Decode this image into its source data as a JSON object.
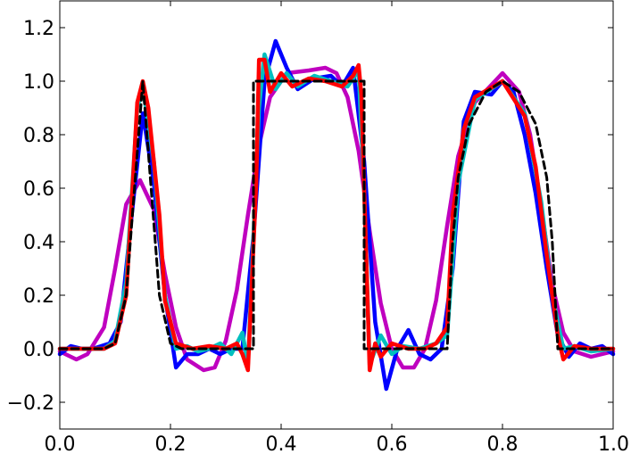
{
  "chart_data": {
    "type": "line",
    "title": "",
    "xlabel": "",
    "ylabel": "",
    "xlim": [
      0.0,
      1.0
    ],
    "ylim": [
      -0.3,
      1.3
    ],
    "grid": false,
    "legend": "none",
    "x_ticks": [
      {
        "value": 0.0,
        "label": "0.0"
      },
      {
        "value": 0.2,
        "label": "0.2"
      },
      {
        "value": 0.4,
        "label": "0.4"
      },
      {
        "value": 0.6,
        "label": "0.6"
      },
      {
        "value": 0.8,
        "label": "0.8"
      },
      {
        "value": 1.0,
        "label": "1.0"
      }
    ],
    "y_ticks": [
      {
        "value": -0.2,
        "label": "−0.2"
      },
      {
        "value": 0.0,
        "label": "0.0"
      },
      {
        "value": 0.2,
        "label": "0.2"
      },
      {
        "value": 0.4,
        "label": "0.4"
      },
      {
        "value": 0.6,
        "label": "0.6"
      },
      {
        "value": 0.8,
        "label": "0.8"
      },
      {
        "value": 1.0,
        "label": "1.0"
      },
      {
        "value": 1.2,
        "label": "1.2"
      }
    ],
    "series": [
      {
        "color": "#bf00bf",
        "style": "solid",
        "points": [
          [
            0.0,
            -0.01
          ],
          [
            0.03,
            -0.04
          ],
          [
            0.05,
            -0.02
          ],
          [
            0.08,
            0.08
          ],
          [
            0.1,
            0.3
          ],
          [
            0.12,
            0.54
          ],
          [
            0.145,
            0.63
          ],
          [
            0.17,
            0.52
          ],
          [
            0.19,
            0.28
          ],
          [
            0.21,
            0.08
          ],
          [
            0.23,
            -0.04
          ],
          [
            0.26,
            -0.08
          ],
          [
            0.28,
            -0.07
          ],
          [
            0.3,
            0.03
          ],
          [
            0.32,
            0.22
          ],
          [
            0.34,
            0.5
          ],
          [
            0.36,
            0.76
          ],
          [
            0.38,
            0.94
          ],
          [
            0.41,
            1.03
          ],
          [
            0.45,
            1.04
          ],
          [
            0.48,
            1.05
          ],
          [
            0.5,
            1.03
          ],
          [
            0.52,
            0.94
          ],
          [
            0.54,
            0.74
          ],
          [
            0.56,
            0.44
          ],
          [
            0.58,
            0.17
          ],
          [
            0.6,
            0.0
          ],
          [
            0.62,
            -0.07
          ],
          [
            0.64,
            -0.07
          ],
          [
            0.66,
            0.0
          ],
          [
            0.68,
            0.18
          ],
          [
            0.7,
            0.46
          ],
          [
            0.72,
            0.72
          ],
          [
            0.75,
            0.92
          ],
          [
            0.8,
            1.03
          ],
          [
            0.83,
            0.96
          ],
          [
            0.85,
            0.8
          ],
          [
            0.87,
            0.53
          ],
          [
            0.89,
            0.24
          ],
          [
            0.91,
            0.06
          ],
          [
            0.93,
            -0.01
          ],
          [
            0.96,
            -0.03
          ],
          [
            0.98,
            -0.02
          ],
          [
            1.0,
            -0.01
          ]
        ]
      },
      {
        "color": "#0000ff",
        "style": "solid",
        "points": [
          [
            0.0,
            -0.02
          ],
          [
            0.02,
            0.01
          ],
          [
            0.04,
            0.0
          ],
          [
            0.06,
            0.0
          ],
          [
            0.09,
            0.02
          ],
          [
            0.11,
            0.1
          ],
          [
            0.13,
            0.5
          ],
          [
            0.15,
            0.88
          ],
          [
            0.17,
            0.62
          ],
          [
            0.19,
            0.2
          ],
          [
            0.21,
            -0.07
          ],
          [
            0.23,
            -0.02
          ],
          [
            0.25,
            -0.02
          ],
          [
            0.27,
            0.0
          ],
          [
            0.29,
            -0.02
          ],
          [
            0.31,
            0.0
          ],
          [
            0.33,
            0.0
          ],
          [
            0.35,
            0.42
          ],
          [
            0.37,
            1.0
          ],
          [
            0.39,
            1.15
          ],
          [
            0.41,
            1.05
          ],
          [
            0.43,
            0.97
          ],
          [
            0.46,
            1.01
          ],
          [
            0.49,
            1.02
          ],
          [
            0.51,
            0.98
          ],
          [
            0.53,
            1.05
          ],
          [
            0.55,
            0.7
          ],
          [
            0.57,
            0.1
          ],
          [
            0.59,
            -0.15
          ],
          [
            0.61,
            0.0
          ],
          [
            0.63,
            0.07
          ],
          [
            0.65,
            -0.02
          ],
          [
            0.67,
            -0.04
          ],
          [
            0.69,
            0.0
          ],
          [
            0.71,
            0.3
          ],
          [
            0.73,
            0.85
          ],
          [
            0.75,
            0.96
          ],
          [
            0.78,
            0.95
          ],
          [
            0.8,
            1.0
          ],
          [
            0.82,
            0.96
          ],
          [
            0.84,
            0.8
          ],
          [
            0.86,
            0.58
          ],
          [
            0.88,
            0.3
          ],
          [
            0.9,
            0.05
          ],
          [
            0.92,
            -0.03
          ],
          [
            0.94,
            0.02
          ],
          [
            0.96,
            0.0
          ],
          [
            0.98,
            0.01
          ],
          [
            1.0,
            -0.02
          ]
        ]
      },
      {
        "color": "#00bfbf",
        "style": "solid",
        "points": [
          [
            0.0,
            0.0
          ],
          [
            0.04,
            0.0
          ],
          [
            0.08,
            0.0
          ],
          [
            0.1,
            0.03
          ],
          [
            0.12,
            0.25
          ],
          [
            0.14,
            0.9
          ],
          [
            0.15,
            0.98
          ],
          [
            0.17,
            0.7
          ],
          [
            0.19,
            0.2
          ],
          [
            0.21,
            0.0
          ],
          [
            0.23,
            0.01
          ],
          [
            0.25,
            -0.01
          ],
          [
            0.27,
            0.0
          ],
          [
            0.29,
            0.02
          ],
          [
            0.31,
            -0.02
          ],
          [
            0.33,
            0.06
          ],
          [
            0.34,
            -0.06
          ],
          [
            0.36,
            0.9
          ],
          [
            0.37,
            1.1
          ],
          [
            0.39,
            0.97
          ],
          [
            0.41,
            1.03
          ],
          [
            0.43,
            0.98
          ],
          [
            0.46,
            1.02
          ],
          [
            0.49,
            1.0
          ],
          [
            0.52,
            0.98
          ],
          [
            0.54,
            1.04
          ],
          [
            0.55,
            0.6
          ],
          [
            0.56,
            -0.06
          ],
          [
            0.58,
            0.05
          ],
          [
            0.6,
            -0.02
          ],
          [
            0.62,
            0.01
          ],
          [
            0.65,
            0.0
          ],
          [
            0.68,
            0.02
          ],
          [
            0.7,
            0.05
          ],
          [
            0.72,
            0.62
          ],
          [
            0.75,
            0.93
          ],
          [
            0.8,
            1.0
          ],
          [
            0.84,
            0.88
          ],
          [
            0.87,
            0.55
          ],
          [
            0.89,
            0.2
          ],
          [
            0.91,
            0.0
          ],
          [
            0.93,
            0.01
          ],
          [
            0.96,
            -0.01
          ],
          [
            1.0,
            0.0
          ]
        ]
      },
      {
        "color": "#ff0000",
        "style": "solid",
        "points": [
          [
            0.0,
            0.0
          ],
          [
            0.04,
            0.0
          ],
          [
            0.08,
            0.0
          ],
          [
            0.1,
            0.02
          ],
          [
            0.12,
            0.2
          ],
          [
            0.13,
            0.55
          ],
          [
            0.14,
            0.92
          ],
          [
            0.15,
            1.0
          ],
          [
            0.16,
            0.9
          ],
          [
            0.18,
            0.5
          ],
          [
            0.19,
            0.18
          ],
          [
            0.21,
            0.02
          ],
          [
            0.24,
            0.0
          ],
          [
            0.27,
            0.01
          ],
          [
            0.3,
            0.0
          ],
          [
            0.32,
            0.02
          ],
          [
            0.33,
            -0.02
          ],
          [
            0.34,
            -0.08
          ],
          [
            0.355,
            0.62
          ],
          [
            0.36,
            1.08
          ],
          [
            0.37,
            1.08
          ],
          [
            0.38,
            0.96
          ],
          [
            0.4,
            1.03
          ],
          [
            0.42,
            0.98
          ],
          [
            0.45,
            1.01
          ],
          [
            0.48,
            1.0
          ],
          [
            0.51,
            0.98
          ],
          [
            0.53,
            1.02
          ],
          [
            0.54,
            1.06
          ],
          [
            0.545,
            0.95
          ],
          [
            0.55,
            0.6
          ],
          [
            0.56,
            -0.08
          ],
          [
            0.57,
            0.02
          ],
          [
            0.58,
            -0.03
          ],
          [
            0.6,
            0.02
          ],
          [
            0.63,
            0.0
          ],
          [
            0.66,
            0.0
          ],
          [
            0.68,
            0.02
          ],
          [
            0.7,
            0.08
          ],
          [
            0.71,
            0.5
          ],
          [
            0.73,
            0.82
          ],
          [
            0.75,
            0.94
          ],
          [
            0.8,
            1.0
          ],
          [
            0.84,
            0.87
          ],
          [
            0.86,
            0.68
          ],
          [
            0.88,
            0.35
          ],
          [
            0.9,
            0.05
          ],
          [
            0.91,
            -0.04
          ],
          [
            0.93,
            0.01
          ],
          [
            0.96,
            0.0
          ],
          [
            1.0,
            0.0
          ]
        ]
      },
      {
        "color": "#000000",
        "style": "dashed",
        "points": [
          [
            0.0,
            0.0
          ],
          [
            0.08,
            0.0
          ],
          [
            0.1,
            0.02
          ],
          [
            0.12,
            0.2
          ],
          [
            0.135,
            0.6
          ],
          [
            0.15,
            1.0
          ],
          [
            0.165,
            0.6
          ],
          [
            0.18,
            0.2
          ],
          [
            0.2,
            0.02
          ],
          [
            0.22,
            0.0
          ],
          [
            0.35,
            0.0
          ],
          [
            0.35,
            1.0
          ],
          [
            0.55,
            1.0
          ],
          [
            0.55,
            0.0
          ],
          [
            0.7,
            0.0
          ],
          [
            0.71,
            0.4
          ],
          [
            0.72,
            0.64
          ],
          [
            0.74,
            0.84
          ],
          [
            0.77,
            0.96
          ],
          [
            0.8,
            1.0
          ],
          [
            0.83,
            0.96
          ],
          [
            0.86,
            0.84
          ],
          [
            0.88,
            0.64
          ],
          [
            0.89,
            0.4
          ],
          [
            0.9,
            0.0
          ],
          [
            1.0,
            0.0
          ]
        ]
      }
    ]
  }
}
